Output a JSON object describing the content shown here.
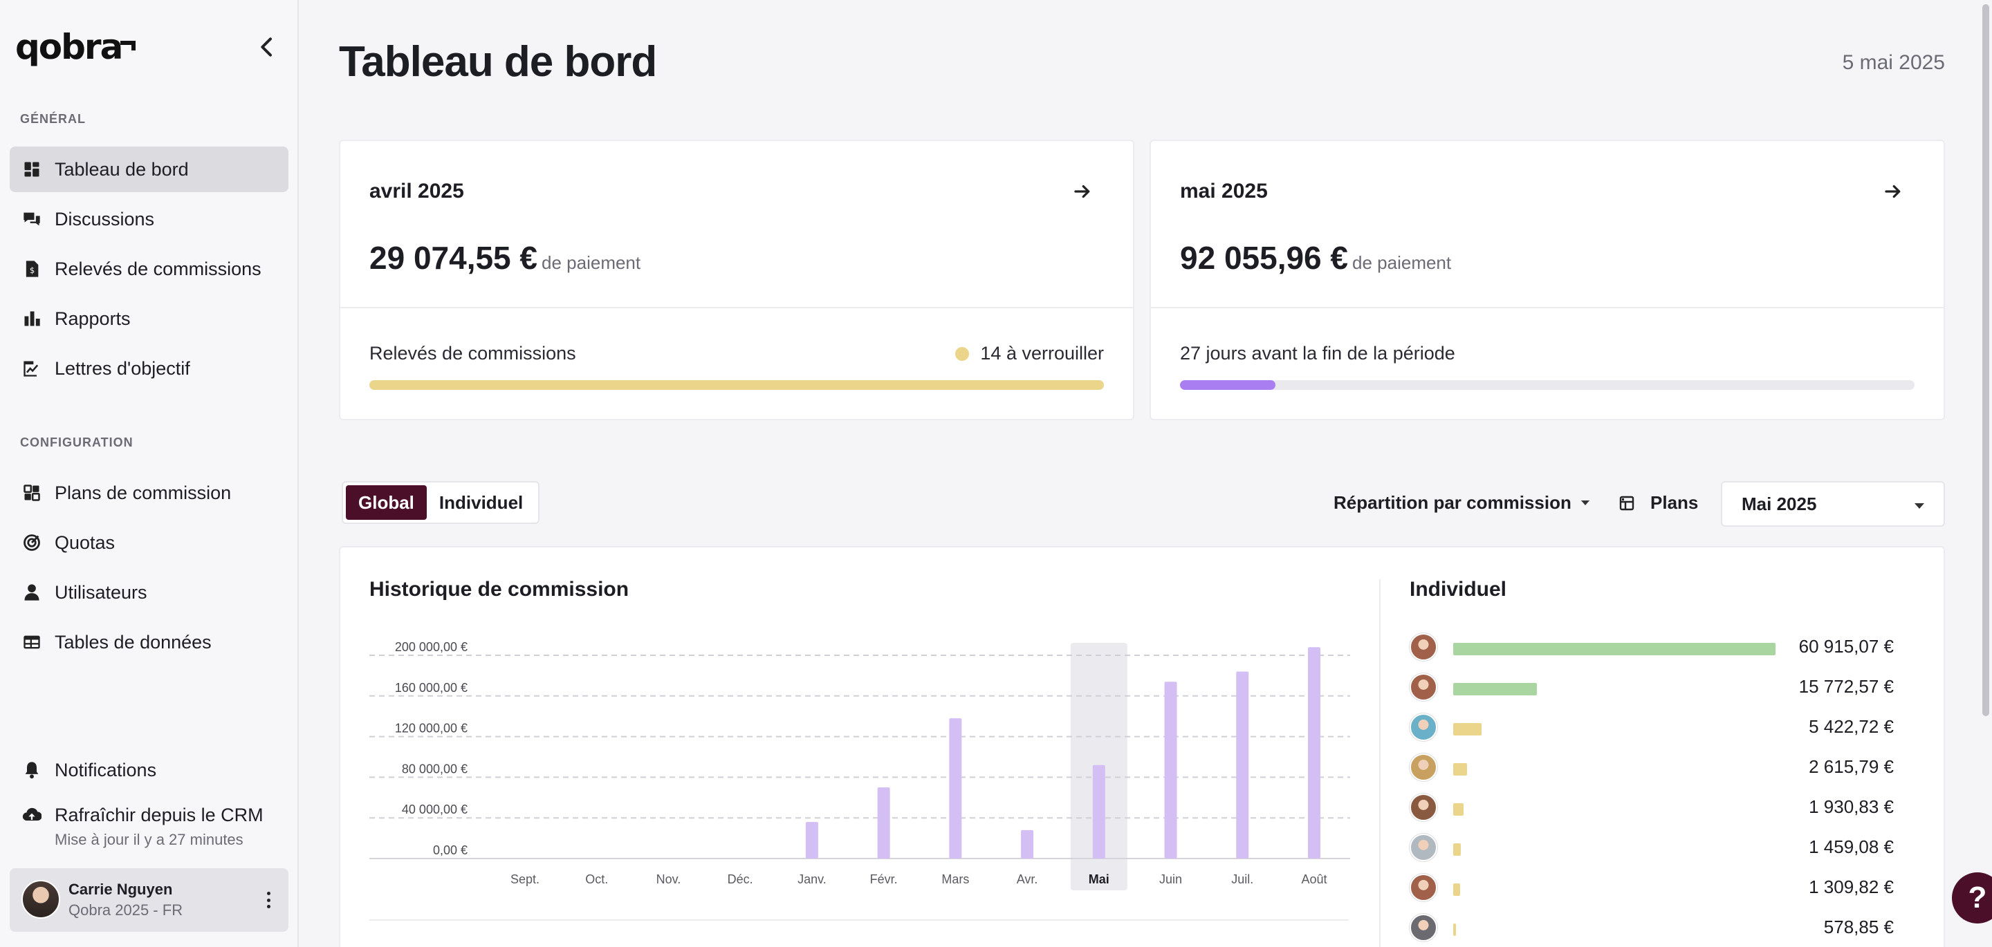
{
  "app": {
    "logo": "qobra"
  },
  "sidebar": {
    "section_general": "GÉNÉRAL",
    "general_items": [
      {
        "label": "Tableau de bord",
        "icon": "dashboard-icon",
        "active": true
      },
      {
        "label": "Discussions",
        "icon": "chat-icon"
      },
      {
        "label": "Relevés de commissions",
        "icon": "statement-icon"
      },
      {
        "label": "Rapports",
        "icon": "bar-chart-icon"
      },
      {
        "label": "Lettres d'objectif",
        "icon": "signature-icon"
      }
    ],
    "section_config": "CONFIGURATION",
    "config_items": [
      {
        "label": "Plans de commission",
        "icon": "plans-icon"
      },
      {
        "label": "Quotas",
        "icon": "target-icon"
      },
      {
        "label": "Utilisateurs",
        "icon": "user-icon"
      },
      {
        "label": "Tables de données",
        "icon": "table-icon"
      }
    ],
    "notifications": "Notifications",
    "crm_refresh": "Rafraîchir depuis le CRM",
    "crm_updated": "Mise à jour il y a 27 minutes",
    "user": {
      "name": "Carrie Nguyen",
      "subtitle": "Qobra 2025 - FR"
    }
  },
  "header": {
    "title": "Tableau de bord",
    "date": "5 mai 2025"
  },
  "cards": [
    {
      "month": "avril 2025",
      "amount": "29 074,55 €",
      "amount_unit": "de paiement",
      "footer_label": "Relevés de commissions",
      "footer_right": "14 à verrouiller",
      "progress": 1.0,
      "bar_color": "#ead58a"
    },
    {
      "month": "mai 2025",
      "amount": "92 055,96 €",
      "amount_unit": "de paiement",
      "footer_label": "27 jours avant la fin de la période",
      "footer_right": "",
      "progress": 0.13,
      "bar_color": "#a97ef0"
    }
  ],
  "controls": {
    "toggle_global": "Global",
    "toggle_individual": "Individuel",
    "split_label": "Répartition par commission",
    "plans_label": "Plans",
    "month_select": "Mai 2025"
  },
  "history": {
    "title": "Historique de commission"
  },
  "chart_data": {
    "type": "bar",
    "title": "Historique de commission",
    "categories": [
      "Sept.",
      "Oct.",
      "Nov.",
      "Déc.",
      "Janv.",
      "Févr.",
      "Mars",
      "Avr.",
      "Mai",
      "Juin",
      "Juil.",
      "Août"
    ],
    "values": [
      0,
      0,
      0,
      0,
      36000,
      70000,
      138000,
      28000,
      92000,
      174000,
      184000,
      208000
    ],
    "ylim": [
      0,
      200000
    ],
    "yticks": [
      0,
      40000,
      80000,
      120000,
      160000,
      200000
    ],
    "ytick_labels": [
      "0,00 €",
      "40 000,00 €",
      "80 000,00 €",
      "120 000,00 €",
      "160 000,00 €",
      "200 000,00 €"
    ],
    "highlight": "Mai",
    "bar_color": "#d4bff5",
    "grid": true
  },
  "individual": {
    "title": "Individuel",
    "rows": [
      {
        "value": "60 915,07 €",
        "share": 1.0,
        "color": "#a8d5a0",
        "avatar": "#a0604a"
      },
      {
        "value": "15 772,57 €",
        "share": 0.259,
        "color": "#a8d5a0",
        "avatar": "#a0604a"
      },
      {
        "value": "5 422,72 €",
        "share": 0.089,
        "color": "#ead58a",
        "avatar": "#6ab0c8"
      },
      {
        "value": "2 615,79 €",
        "share": 0.043,
        "color": "#ead58a",
        "avatar": "#c8a060"
      },
      {
        "value": "1 930,83 €",
        "share": 0.032,
        "color": "#ead58a",
        "avatar": "#8a5a40"
      },
      {
        "value": "1 459,08 €",
        "share": 0.024,
        "color": "#ead58a",
        "avatar": "#b0b8c0"
      },
      {
        "value": "1 309,82 €",
        "share": 0.021,
        "color": "#ead58a",
        "avatar": "#a0604a"
      },
      {
        "value": "578,85 €",
        "share": 0.009,
        "color": "#ead58a",
        "avatar": "#6a6a70"
      }
    ]
  },
  "help": "?"
}
